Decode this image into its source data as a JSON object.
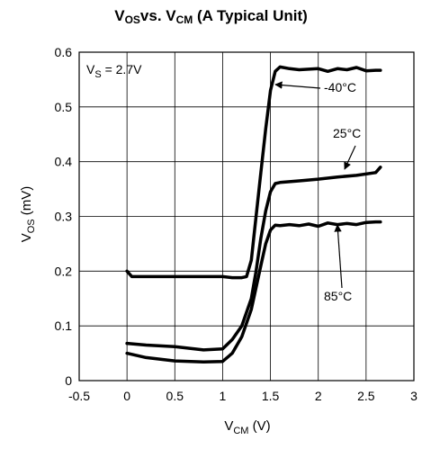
{
  "title": {
    "main": "V",
    "main_sub": "OS",
    "vs": "vs. V",
    "vs_sub": "CM",
    "rest": " (A Typical Unit)"
  },
  "ylabel": {
    "main": "V",
    "sub": "OS",
    "unit": " (mV)"
  },
  "xlabel": {
    "main": "V",
    "sub": "CM",
    "unit": " (V)"
  },
  "vs_label": {
    "main": "V",
    "sub": "S",
    "rest": " = 2.7V"
  },
  "chart_data": {
    "type": "line",
    "title": "VOS vs. VCM (A Typical Unit)",
    "xlabel": "VCM (V)",
    "ylabel": "VOS (mV)",
    "xlim": [
      -0.5,
      3
    ],
    "ylim": [
      0,
      0.6
    ],
    "xticks": [
      -0.5,
      0,
      0.5,
      1,
      1.5,
      2,
      2.5,
      3
    ],
    "xtick_labels": [
      "-0.5",
      "0",
      "0.5",
      "1",
      "1.5",
      "2",
      "2.5",
      "3"
    ],
    "yticks": [
      0,
      0.1,
      0.2,
      0.3,
      0.4,
      0.5,
      0.6
    ],
    "ytick_labels": [
      "0",
      "0.1",
      "0.2",
      "0.3",
      "0.4",
      "0.5",
      "0.6"
    ],
    "grid": true,
    "annotation": "VS = 2.7V",
    "series": [
      {
        "name": "-40°C",
        "x": [
          0,
          0.05,
          0.2,
          0.5,
          0.8,
          1.0,
          1.1,
          1.2,
          1.25,
          1.3,
          1.35,
          1.4,
          1.45,
          1.5,
          1.55,
          1.6,
          1.7,
          1.8,
          2.0,
          2.1,
          2.2,
          2.3,
          2.4,
          2.5,
          2.6,
          2.65
        ],
        "y": [
          0.2,
          0.19,
          0.19,
          0.19,
          0.19,
          0.19,
          0.188,
          0.188,
          0.19,
          0.22,
          0.3,
          0.38,
          0.46,
          0.53,
          0.565,
          0.573,
          0.57,
          0.568,
          0.57,
          0.565,
          0.57,
          0.568,
          0.572,
          0.566,
          0.567,
          0.567
        ]
      },
      {
        "name": "25°C",
        "x": [
          0,
          0.2,
          0.5,
          0.8,
          1.0,
          1.1,
          1.2,
          1.3,
          1.35,
          1.4,
          1.45,
          1.5,
          1.55,
          1.6,
          1.8,
          2.0,
          2.2,
          2.4,
          2.6,
          2.65
        ],
        "y": [
          0.068,
          0.065,
          0.062,
          0.056,
          0.058,
          0.075,
          0.1,
          0.15,
          0.2,
          0.26,
          0.31,
          0.345,
          0.36,
          0.362,
          0.365,
          0.368,
          0.372,
          0.375,
          0.38,
          0.39
        ]
      },
      {
        "name": "85°C",
        "x": [
          0,
          0.2,
          0.5,
          0.8,
          1.0,
          1.1,
          1.2,
          1.3,
          1.35,
          1.4,
          1.45,
          1.5,
          1.55,
          1.6,
          1.7,
          1.8,
          1.9,
          2.0,
          2.1,
          2.2,
          2.3,
          2.4,
          2.5,
          2.6,
          2.65
        ],
        "y": [
          0.05,
          0.042,
          0.036,
          0.034,
          0.035,
          0.05,
          0.08,
          0.13,
          0.17,
          0.21,
          0.25,
          0.275,
          0.284,
          0.283,
          0.285,
          0.283,
          0.286,
          0.282,
          0.288,
          0.285,
          0.287,
          0.285,
          0.289,
          0.29,
          0.29
        ]
      }
    ],
    "labels": [
      {
        "text": "-40°C",
        "series": "-40°C"
      },
      {
        "text": "25°C",
        "series": "25°C"
      },
      {
        "text": "85°C",
        "series": "85°C"
      }
    ]
  }
}
